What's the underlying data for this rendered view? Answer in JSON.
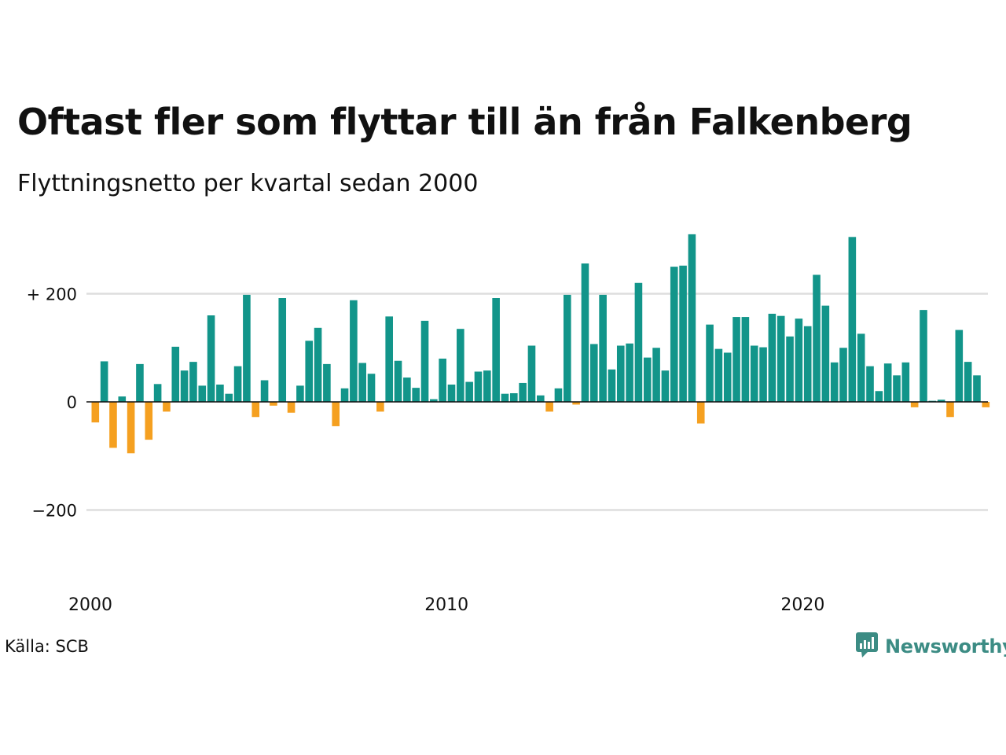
{
  "title": "Oftast fler som flyttar till än från Falkenberg",
  "subtitle": "Flyttningsnetto per kvartal sedan 2000",
  "source": "Källa: SCB",
  "logo": {
    "text": "Newsworthy",
    "icon": "newsworthy-chart-icon",
    "color": "#3c8c84"
  },
  "colors": {
    "positive": "#12958a",
    "negative": "#f5a020",
    "grid": "#dddddd",
    "zero_line": "#111111"
  },
  "chart_data": {
    "type": "bar",
    "title": "Oftast fler som flyttar till än från Falkenberg",
    "subtitle": "Flyttningsnetto per kvartal sedan 2000",
    "xlabel": "",
    "ylabel": "",
    "ylim": [
      -300,
      330
    ],
    "yticks": [
      {
        "value": 200,
        "label": "+ 200"
      },
      {
        "value": 0,
        "label": "0"
      },
      {
        "value": -200,
        "label": "−200"
      }
    ],
    "xticks": [
      {
        "index": 0,
        "label": "2000"
      },
      {
        "index": 40,
        "label": "2010"
      },
      {
        "index": 80,
        "label": "2020"
      }
    ],
    "grid": true,
    "legend": "none",
    "start_period": "2000 Q1",
    "frequency": "quarter",
    "values": [
      -38,
      75,
      -85,
      10,
      -95,
      70,
      -70,
      33,
      -18,
      102,
      58,
      74,
      30,
      160,
      32,
      15,
      66,
      198,
      -28,
      40,
      -7,
      192,
      -20,
      30,
      113,
      137,
      70,
      -45,
      25,
      188,
      72,
      52,
      -18,
      158,
      76,
      45,
      26,
      150,
      5,
      80,
      32,
      135,
      37,
      56,
      58,
      192,
      15,
      16,
      35,
      104,
      12,
      -18,
      25,
      198,
      -5,
      256,
      107,
      198,
      60,
      104,
      108,
      220,
      82,
      100,
      58,
      250,
      252,
      310,
      -40,
      143,
      98,
      91,
      157,
      157,
      104,
      101,
      163,
      159,
      121,
      154,
      140,
      235,
      178,
      73,
      100,
      305,
      126,
      66,
      20,
      71,
      49,
      73,
      -10,
      170,
      2,
      4,
      -28,
      133,
      74,
      49,
      -10
    ]
  }
}
